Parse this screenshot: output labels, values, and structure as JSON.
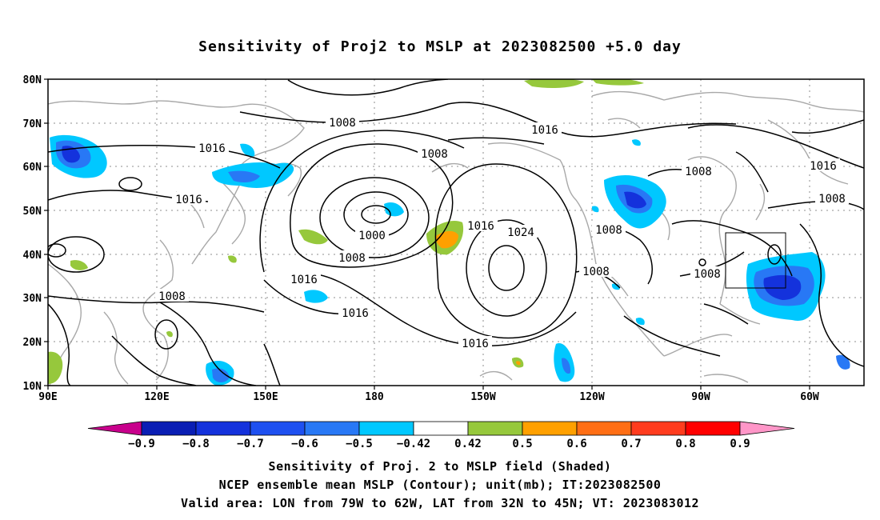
{
  "title": "Sensitivity of Proj2 to MSLP at 2023082500 +5.0 day",
  "lat_labels": [
    "80N",
    "70N",
    "60N",
    "50N",
    "40N",
    "30N",
    "20N",
    "10N"
  ],
  "lon_labels": [
    "90E",
    "120E",
    "150E",
    "180",
    "150W",
    "120W",
    "90W",
    "60W"
  ],
  "contour_labels": [
    "1008",
    "1016",
    "1008",
    "1016",
    "1016",
    "1000",
    "1008",
    "1016",
    "1016",
    "1008",
    "1016",
    "1024",
    "1008",
    "1008",
    "1016",
    "1008",
    "1008",
    "1016",
    "1008",
    "1016",
    "1016"
  ],
  "colorbar": {
    "labels": [
      "-0.9",
      "-0.8",
      "-0.7",
      "-0.6",
      "-0.5",
      "-0.42",
      "0.42",
      "0.5",
      "0.6",
      "0.7",
      "0.8",
      "0.9"
    ],
    "colors": [
      "#c8008c",
      "#0a1eb4",
      "#1432dc",
      "#1e50f0",
      "#2878f5",
      "#00c8ff",
      "#ffffff",
      "#96c83c",
      "#ffa000",
      "#ff6e14",
      "#ff3c1e",
      "#ff0000",
      "#ff96c8"
    ]
  },
  "footer": {
    "line1": "Sensitivity of Proj. 2 to MSLP field (Shaded)",
    "line2": "NCEP ensemble mean MSLP (Contour); unit(mb); IT:2023082500",
    "line3": "Valid area: LON from 79W to 62W, LAT from 32N to 45N; VT: 2023083012"
  }
}
